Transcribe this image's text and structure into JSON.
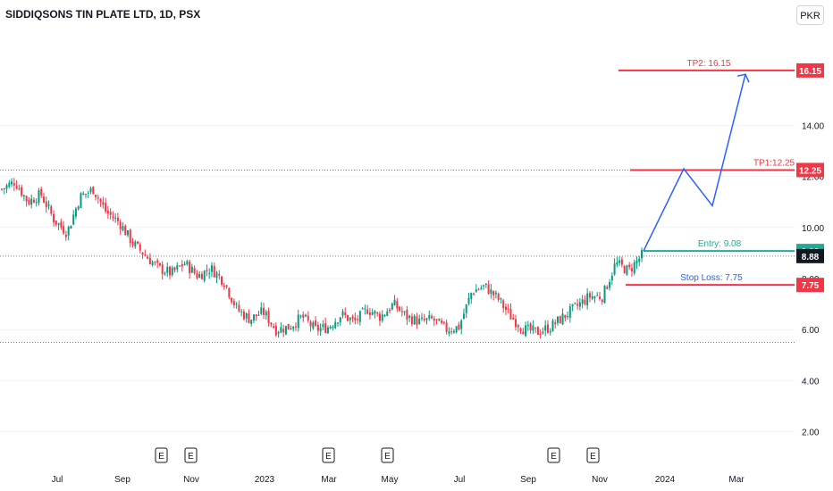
{
  "chart_data": {
    "type": "candlestick",
    "title": "SIDDIQSONS TIN PLATE LTD, 1D, PSX",
    "currency": "PKR",
    "y_ticks": [
      "2.00",
      "4.00",
      "6.00",
      "8.00",
      "10.00",
      "12.00",
      "14.00"
    ],
    "ylim": [
      0.5,
      19.0
    ],
    "x_ticks": [
      "Jul",
      "Sep",
      "Nov",
      "2023",
      "Mar",
      "May",
      "Jul",
      "Sep",
      "Nov",
      "2024",
      "Mar"
    ],
    "earnings_marker": "E",
    "earnings_count": 6,
    "price_path": [
      11.5,
      11.8,
      11.0,
      11.3,
      10.3,
      9.8,
      11.2,
      11.5,
      10.6,
      10.2,
      9.4,
      8.9,
      8.4,
      8.2,
      8.6,
      8.1,
      8.4,
      7.9,
      6.8,
      6.4,
      6.7,
      6.0,
      6.1,
      6.5,
      6.0,
      6.1,
      6.6,
      6.3,
      6.8,
      6.5,
      7.0,
      6.5,
      6.3,
      6.4,
      6.0,
      6.1,
      7.5,
      7.7,
      7.2,
      6.5,
      6.0,
      5.9,
      6.1,
      6.5,
      6.9,
      7.3,
      7.3,
      8.6,
      8.3,
      8.9
    ],
    "levels": [
      {
        "label": "TP2: 16.15",
        "tag": "16.15",
        "value": 16.15,
        "color": "#f23645"
      },
      {
        "label": "TP1:12.25",
        "tag": "12.25",
        "value": 12.25,
        "color": "#f23645"
      },
      {
        "label": "Entry: 9.08",
        "tag": "9.08",
        "value": 9.08,
        "color": "#22ab94"
      },
      {
        "label": "Stop Loss: 7.75",
        "tag": "7.75",
        "value": 7.75,
        "color": "#f23645"
      }
    ],
    "last_price": {
      "tag": "8.88",
      "value": 8.88,
      "color": "#131722"
    },
    "projection": [
      9.08,
      12.3,
      10.85,
      16.0
    ],
    "colors": {
      "up": "#089981",
      "down": "#f23645",
      "projection": "#2962ff",
      "entry": "#22ab94",
      "stop_label": "#2962ff"
    }
  }
}
